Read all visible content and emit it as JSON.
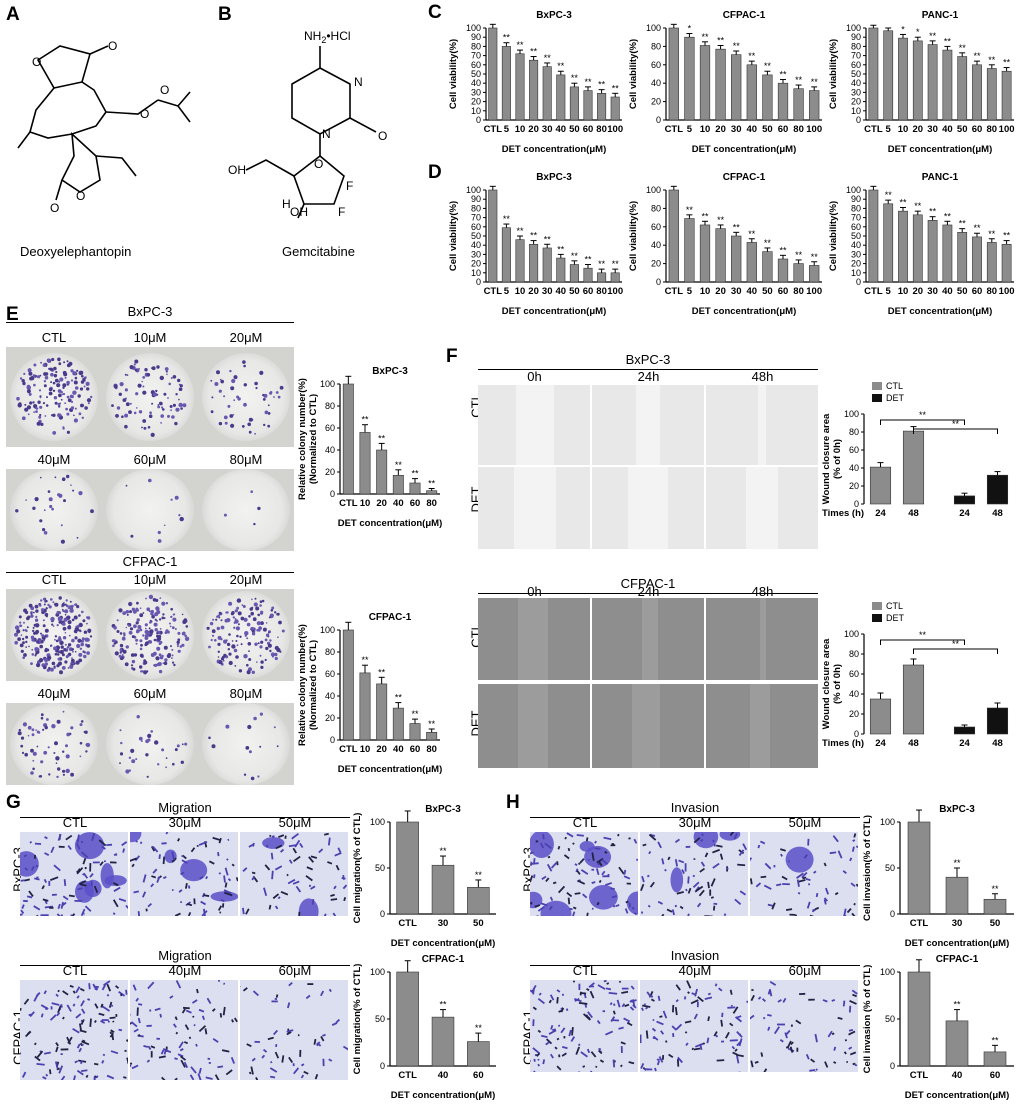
{
  "panels": {
    "A": "A",
    "B": "B",
    "C": "C",
    "D": "D",
    "E": "E",
    "F": "F",
    "G": "G",
    "H": "H"
  },
  "chem": {
    "a_caption": "Deoxyelephantopin",
    "b_caption": "Gemcitabine",
    "b_nh2": "NH",
    "b_nh2_sub": "2",
    "b_hcl": "•HCl",
    "atoms": {
      "o": "O",
      "oh": "OH",
      "h": "H",
      "f": "F",
      "n": "N"
    }
  },
  "colony": {
    "top_title": "BxPC-3",
    "top_conditions": [
      "CTL",
      "10μM",
      "20μM",
      "40μM",
      "60μM",
      "80μM"
    ],
    "bottom_title": "CFPAC-1",
    "bottom_conditions": [
      "CTL",
      "10μM",
      "20μM",
      "40μM",
      "60μM",
      "80μM"
    ]
  },
  "wound": {
    "top_title": "BxPC-3",
    "bottom_title": "CFPAC-1",
    "times": [
      "0h",
      "24h",
      "48h"
    ],
    "rows": [
      "CTL",
      "DET"
    ]
  },
  "migration": {
    "title_top": "Migration",
    "title_bottom": "Migration",
    "top_conditions": [
      "CTL",
      "30μM",
      "50μM"
    ],
    "bottom_conditions": [
      "CTL",
      "40μM",
      "60μM"
    ],
    "row_top": "BxPC-3",
    "row_bottom": "CFPAC-1"
  },
  "invasion": {
    "title_top": "Invasion",
    "title_bottom": "Invasion",
    "top_conditions": [
      "CTL",
      "30μM",
      "50μM"
    ],
    "bottom_conditions": [
      "CTL",
      "40μM",
      "60μM"
    ],
    "row_top": "BxPC-3",
    "row_bottom": "CFPAC-1"
  },
  "chart_data": [
    {
      "id": "C1",
      "type": "bar",
      "title": "BxPC-3",
      "ylabel": "Cell viability(%)",
      "xlabel": "DET concentration(μM)",
      "ylim": [
        0,
        100
      ],
      "yticks": [
        0,
        10,
        20,
        30,
        40,
        50,
        60,
        70,
        80,
        90,
        100
      ],
      "categories": [
        "CTL",
        "5",
        "10",
        "20",
        "30",
        "40",
        "50",
        "60",
        "80",
        "100"
      ],
      "values": [
        100,
        80,
        72,
        65,
        58,
        49,
        36,
        32,
        29,
        25
      ],
      "errors": [
        4,
        4,
        4,
        4,
        4,
        4,
        4,
        4,
        4,
        4
      ],
      "annotations": [
        "",
        "**",
        "**",
        "**",
        "**",
        "**",
        "**",
        "**",
        "**",
        "**"
      ]
    },
    {
      "id": "C2",
      "type": "bar",
      "title": "CFPAC-1",
      "ylabel": "Cell viability(%)",
      "xlabel": "DET concentration(μM)",
      "ylim": [
        0,
        100
      ],
      "yticks": [
        0,
        20,
        40,
        60,
        80,
        100
      ],
      "categories": [
        "CTL",
        "5",
        "10",
        "20",
        "30",
        "40",
        "50",
        "60",
        "80",
        "100"
      ],
      "values": [
        100,
        90,
        81,
        77,
        71,
        60,
        49,
        40,
        34,
        32
      ],
      "errors": [
        4,
        4,
        4,
        4,
        4,
        4,
        4,
        4,
        4,
        4
      ],
      "annotations": [
        "",
        "*",
        "**",
        "**",
        "**",
        "**",
        "**",
        "**",
        "**",
        "**"
      ]
    },
    {
      "id": "C3",
      "type": "bar",
      "title": "PANC-1",
      "ylabel": "Cell viability(%)",
      "xlabel": "DET concentration(μM)",
      "ylim": [
        0,
        100
      ],
      "yticks": [
        0,
        10,
        20,
        30,
        40,
        50,
        60,
        70,
        80,
        90,
        100
      ],
      "categories": [
        "CTL",
        "5",
        "10",
        "20",
        "30",
        "40",
        "50",
        "60",
        "80",
        "100"
      ],
      "values": [
        100,
        97,
        89,
        86,
        82,
        76,
        69,
        60,
        56,
        53
      ],
      "errors": [
        3,
        3,
        4,
        4,
        4,
        4,
        4,
        4,
        4,
        4
      ],
      "annotations": [
        "",
        "",
        "*",
        "*",
        "**",
        "**",
        "**",
        "**",
        "**",
        "**"
      ]
    },
    {
      "id": "D1",
      "type": "bar",
      "title": "BxPC-3",
      "ylabel": "Cell viability(%)",
      "xlabel": "DET concentration(μM)",
      "ylim": [
        0,
        100
      ],
      "yticks": [
        0,
        10,
        20,
        30,
        40,
        50,
        60,
        70,
        80,
        90,
        100
      ],
      "categories": [
        "CTL",
        "5",
        "10",
        "20",
        "30",
        "40",
        "50",
        "60",
        "80",
        "100"
      ],
      "values": [
        100,
        59,
        46,
        41,
        37,
        26,
        19,
        15,
        10,
        10
      ],
      "errors": [
        4,
        4,
        4,
        4,
        4,
        4,
        4,
        4,
        4,
        4
      ],
      "annotations": [
        "",
        "**",
        "**",
        "**",
        "**",
        "**",
        "**",
        "**",
        "**",
        "**"
      ]
    },
    {
      "id": "D2",
      "type": "bar",
      "title": "CFPAC-1",
      "ylabel": "Cell viability(%)",
      "xlabel": "DET concentration(μM)",
      "ylim": [
        0,
        100
      ],
      "yticks": [
        0,
        20,
        40,
        60,
        80,
        100
      ],
      "categories": [
        "CTL",
        "5",
        "10",
        "20",
        "30",
        "40",
        "50",
        "60",
        "80",
        "100"
      ],
      "values": [
        100,
        69,
        62,
        58,
        50,
        43,
        33,
        25,
        20,
        18
      ],
      "errors": [
        4,
        4,
        4,
        4,
        4,
        4,
        4,
        4,
        4,
        4
      ],
      "annotations": [
        "",
        "**",
        "**",
        "**",
        "**",
        "**",
        "**",
        "**",
        "**",
        "**"
      ]
    },
    {
      "id": "D3",
      "type": "bar",
      "title": "PANC-1",
      "ylabel": "Cell viability(%)",
      "xlabel": "DET concentration(μM)",
      "ylim": [
        0,
        100
      ],
      "yticks": [
        0,
        10,
        20,
        30,
        40,
        50,
        60,
        70,
        80,
        90,
        100
      ],
      "categories": [
        "CTL",
        "5",
        "10",
        "20",
        "30",
        "40",
        "50",
        "60",
        "80",
        "100"
      ],
      "values": [
        100,
        85,
        77,
        73,
        67,
        62,
        54,
        49,
        43,
        41
      ],
      "errors": [
        4,
        4,
        4,
        4,
        4,
        4,
        4,
        4,
        4,
        4
      ],
      "annotations": [
        "",
        "**",
        "**",
        "**",
        "**",
        "**",
        "**",
        "**",
        "**",
        "**"
      ]
    },
    {
      "id": "E1",
      "type": "bar",
      "title": "BxPC-3",
      "ylabel": "Relative colony number(%)",
      "ylabel2": "(Normalized to CTL)",
      "xlabel": "DET concentration(μM)",
      "ylim": [
        0,
        100
      ],
      "yticks": [
        0,
        20,
        40,
        60,
        80,
        100
      ],
      "categories": [
        "CTL",
        "10",
        "20",
        "40",
        "60",
        "80"
      ],
      "values": [
        100,
        56,
        40,
        17,
        10,
        3
      ],
      "errors": [
        7,
        7,
        6,
        5,
        4,
        2
      ],
      "annotations": [
        "",
        "**",
        "**",
        "**",
        "**",
        "**"
      ]
    },
    {
      "id": "E2",
      "type": "bar",
      "title": "CFPAC-1",
      "ylabel": "Relative colony number(%)",
      "ylabel2": "(Normalized to CTL)",
      "xlabel": "DET concentration(μM)",
      "ylim": [
        0,
        100
      ],
      "yticks": [
        0,
        20,
        40,
        60,
        80,
        100
      ],
      "categories": [
        "CTL",
        "10",
        "20",
        "40",
        "60",
        "80"
      ],
      "values": [
        100,
        61,
        51,
        29,
        15,
        7
      ],
      "errors": [
        7,
        7,
        6,
        5,
        4,
        3
      ],
      "annotations": [
        "",
        "**",
        "**",
        "**",
        "**",
        "**"
      ]
    },
    {
      "id": "F1",
      "type": "bar",
      "ylabel": "Wound closure area",
      "ylabel2": "(% of 0h)",
      "xlabel": "Times (h)",
      "ylim": [
        0,
        100
      ],
      "yticks": [
        0,
        20,
        40,
        60,
        80,
        100
      ],
      "categories": [
        "24",
        "48",
        "24",
        "48"
      ],
      "values": [
        41,
        81,
        9,
        32
      ],
      "errors": [
        5,
        5,
        3,
        4
      ],
      "series": [
        {
          "name": "CTL",
          "color": "#8c8c8c"
        },
        {
          "name": "DET",
          "color": "#111111"
        }
      ],
      "series_of_bar": [
        0,
        0,
        1,
        1
      ],
      "brackets": [
        {
          "from": 0,
          "to": 2,
          "label": "**"
        },
        {
          "from": 1,
          "to": 3,
          "label": "**"
        }
      ]
    },
    {
      "id": "F2",
      "type": "bar",
      "ylabel": "Wound closure area",
      "ylabel2": "(% of 0h)",
      "xlabel": "Times (h)",
      "ylim": [
        0,
        100
      ],
      "yticks": [
        0,
        20,
        40,
        60,
        80,
        100
      ],
      "categories": [
        "24",
        "48",
        "24",
        "48"
      ],
      "values": [
        35,
        69,
        7,
        26
      ],
      "errors": [
        6,
        6,
        2,
        5
      ],
      "series": [
        {
          "name": "CTL",
          "color": "#8c8c8c"
        },
        {
          "name": "DET",
          "color": "#111111"
        }
      ],
      "series_of_bar": [
        0,
        0,
        1,
        1
      ],
      "brackets": [
        {
          "from": 0,
          "to": 2,
          "label": "**"
        },
        {
          "from": 1,
          "to": 3,
          "label": "**"
        }
      ]
    },
    {
      "id": "G1",
      "type": "bar",
      "title": "BxPC-3",
      "ylabel": "Cell migration(% of CTL)",
      "xlabel": "DET concentration(μM)",
      "ylim": [
        0,
        100
      ],
      "yticks": [
        0,
        50,
        100
      ],
      "categories": [
        "CTL",
        "30",
        "50"
      ],
      "values": [
        100,
        53,
        29
      ],
      "errors": [
        12,
        10,
        8
      ],
      "annotations": [
        "",
        "**",
        "**"
      ]
    },
    {
      "id": "G2",
      "type": "bar",
      "title": "CFPAC-1",
      "ylabel": "Cell migration(% of CTL)",
      "xlabel": "DET concentration(μM)",
      "ylim": [
        0,
        100
      ],
      "yticks": [
        0,
        50,
        100
      ],
      "categories": [
        "CTL",
        "40",
        "60"
      ],
      "values": [
        100,
        52,
        26
      ],
      "errors": [
        12,
        8,
        9
      ],
      "annotations": [
        "",
        "**",
        "**"
      ]
    },
    {
      "id": "H1",
      "type": "bar",
      "title": "BxPC-3",
      "ylabel": "Cell invasion(% of CTL)",
      "xlabel": "DET concentration(μM)",
      "ylim": [
        0,
        100
      ],
      "yticks": [
        0,
        50,
        100
      ],
      "categories": [
        "CTL",
        "30",
        "50"
      ],
      "values": [
        100,
        40,
        16
      ],
      "errors": [
        13,
        10,
        6
      ],
      "annotations": [
        "",
        "**",
        "**"
      ]
    },
    {
      "id": "H2",
      "type": "bar",
      "title": "CFPAC-1",
      "ylabel": "Cell invasion (% of CTL)",
      "xlabel": "DET concentration(μM)",
      "ylim": [
        0,
        100
      ],
      "yticks": [
        0,
        50,
        100
      ],
      "categories": [
        "CTL",
        "40",
        "60"
      ],
      "values": [
        100,
        48,
        15
      ],
      "errors": [
        13,
        12,
        7
      ],
      "annotations": [
        "",
        "**",
        "**"
      ]
    }
  ]
}
